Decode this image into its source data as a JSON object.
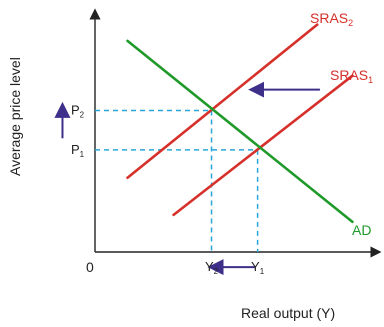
{
  "chart_data": {
    "type": "line",
    "title": "",
    "xlabel": "Real output (Y)",
    "ylabel": "Average price level",
    "origin_label": "0",
    "xlim": [
      0,
      10
    ],
    "ylim": [
      0,
      10
    ],
    "series": [
      {
        "name": "SRAS2",
        "label": "SRAS",
        "subscript": "2",
        "color": "#d6302b",
        "points": [
          [
            1.2,
            3.2
          ],
          [
            8.2,
            9.8
          ]
        ]
      },
      {
        "name": "SRAS1",
        "label": "SRAS",
        "subscript": "1",
        "color": "#d6302b",
        "points": [
          [
            2.9,
            1.6
          ],
          [
            9.5,
            7.6
          ]
        ]
      },
      {
        "name": "AD",
        "label": "AD",
        "subscript": "",
        "color": "#1f9a2a",
        "points": [
          [
            1.2,
            9.1
          ],
          [
            9.5,
            1.3
          ]
        ]
      }
    ],
    "equilibria": [
      {
        "price_label": "P",
        "price_sub": "2",
        "output_label": "Y",
        "output_sub": "2",
        "x": 4.3,
        "y": 6.1
      },
      {
        "price_label": "P",
        "price_sub": "1",
        "output_label": "Y",
        "output_sub": "1",
        "x": 6.0,
        "y": 4.4
      }
    ],
    "guide_color": "#29a6d9",
    "arrow_color": "#3d2f8a",
    "annotations": [
      {
        "type": "arrow",
        "meaning": "supply shift left",
        "from": [
          8.3,
          7.0
        ],
        "to": [
          5.8,
          7.0
        ]
      },
      {
        "type": "arrow",
        "meaning": "output falls",
        "from": [
          5.9,
          -0.65
        ],
        "to": [
          4.3,
          -0.65
        ]
      },
      {
        "type": "arrow",
        "meaning": "price rises",
        "from": [
          -1.2,
          4.9
        ],
        "to": [
          -1.2,
          6.3
        ]
      }
    ]
  }
}
